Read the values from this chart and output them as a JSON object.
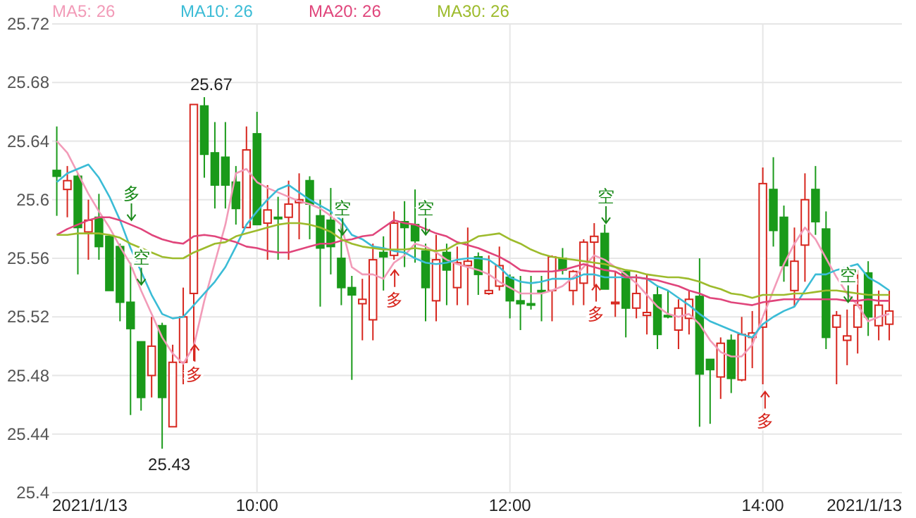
{
  "chart_data": {
    "type": "candlestick",
    "x": [
      8.4167,
      8.5,
      8.5833,
      8.6667,
      8.75,
      8.8333,
      8.9167,
      9,
      9.0833,
      9.1667,
      9.25,
      9.3333,
      9.4167,
      9.5,
      9.5833,
      9.6667,
      9.75,
      9.8333,
      9.9167,
      10,
      10.0833,
      10.1667,
      10.25,
      10.3333,
      10.4167,
      10.5,
      10.5833,
      10.6667,
      10.75,
      10.8333,
      10.9167,
      11,
      11.0833,
      11.1667,
      11.25,
      11.3333,
      11.4167,
      11.5,
      11.5833,
      11.6667,
      11.75,
      11.8333,
      11.9167,
      12,
      12.0833,
      12.1667,
      12.25,
      12.3333,
      12.4167,
      12.5,
      12.5833,
      12.6667,
      12.75,
      12.8333,
      12.9167,
      13,
      13.0833,
      13.1667,
      13.25,
      13.3333,
      13.4167,
      13.5,
      13.5833,
      13.6667,
      13.75,
      13.8333,
      13.9167,
      14,
      14.0833,
      14.1667,
      14.25,
      14.3333,
      14.4167,
      14.5,
      14.5833,
      14.6667,
      14.75,
      14.8333,
      14.9167,
      15
    ],
    "ohlc": [
      [
        25.62,
        25.65,
        25.589,
        25.616
      ],
      [
        25.607,
        25.623,
        25.588,
        25.613
      ],
      [
        25.616,
        25.618,
        25.549,
        25.581
      ],
      [
        25.578,
        25.6,
        25.559,
        25.586
      ],
      [
        25.588,
        25.604,
        25.559,
        25.568
      ],
      [
        25.575,
        25.576,
        25.538,
        25.538
      ],
      [
        25.568,
        25.57,
        25.517,
        25.53
      ],
      [
        25.53,
        25.557,
        25.453,
        25.512
      ],
      [
        25.503,
        25.503,
        25.456,
        25.465
      ],
      [
        25.48,
        25.52,
        25.465,
        25.5
      ],
      [
        25.514,
        25.516,
        25.43,
        25.465
      ],
      [
        25.445,
        25.501,
        25.445,
        25.489
      ],
      [
        25.489,
        25.54,
        25.474,
        25.52
      ],
      [
        25.536,
        25.665,
        25.49,
        25.665
      ],
      [
        25.664,
        25.67,
        25.615,
        25.631
      ],
      [
        25.632,
        25.653,
        25.594,
        25.61
      ],
      [
        25.629,
        25.653,
        25.594,
        25.61
      ],
      [
        25.612,
        25.623,
        25.583,
        25.594
      ],
      [
        25.581,
        25.65,
        25.581,
        25.634
      ],
      [
        25.645,
        25.66,
        25.583,
        25.583
      ],
      [
        25.584,
        25.61,
        25.559,
        25.593
      ],
      [
        25.588,
        25.602,
        25.559,
        25.587
      ],
      [
        25.588,
        25.613,
        25.559,
        25.597
      ],
      [
        25.598,
        25.618,
        25.573,
        25.6
      ],
      [
        25.613,
        25.616,
        25.573,
        25.597
      ],
      [
        25.589,
        25.6,
        25.527,
        25.567
      ],
      [
        25.586,
        25.608,
        25.549,
        25.568
      ],
      [
        25.56,
        25.583,
        25.528,
        25.54
      ],
      [
        25.54,
        25.548,
        25.477,
        25.535
      ],
      [
        25.529,
        25.546,
        25.504,
        25.532
      ],
      [
        25.518,
        25.57,
        25.504,
        25.559
      ],
      [
        25.564,
        25.575,
        25.538,
        25.561
      ],
      [
        25.562,
        25.592,
        25.559,
        25.584
      ],
      [
        25.585,
        25.599,
        25.554,
        25.581
      ],
      [
        25.583,
        25.607,
        25.557,
        25.572
      ],
      [
        25.565,
        25.57,
        25.517,
        25.54
      ],
      [
        25.531,
        25.576,
        25.517,
        25.559
      ],
      [
        25.564,
        25.57,
        25.528,
        25.552
      ],
      [
        25.54,
        25.568,
        25.528,
        25.557
      ],
      [
        25.555,
        25.581,
        25.528,
        25.558
      ],
      [
        25.561,
        25.564,
        25.535,
        25.549
      ],
      [
        25.536,
        25.562,
        25.535,
        25.538
      ],
      [
        25.541,
        25.568,
        25.538,
        25.555
      ],
      [
        25.547,
        25.549,
        25.519,
        25.531
      ],
      [
        25.531,
        25.548,
        25.511,
        25.529
      ],
      [
        25.529,
        25.548,
        25.525,
        25.528
      ],
      [
        25.538,
        25.548,
        25.517,
        25.537
      ],
      [
        25.538,
        25.562,
        25.517,
        25.561
      ],
      [
        25.56,
        25.567,
        25.549,
        25.552
      ],
      [
        25.538,
        25.552,
        25.528,
        25.551
      ],
      [
        25.543,
        25.573,
        25.528,
        25.571
      ],
      [
        25.571,
        25.584,
        25.541,
        25.575
      ],
      [
        25.577,
        25.583,
        25.539,
        25.539
      ],
      [
        25.529,
        25.551,
        25.52,
        25.53
      ],
      [
        25.551,
        25.552,
        25.506,
        25.526
      ],
      [
        25.526,
        25.549,
        25.519,
        25.536
      ],
      [
        25.521,
        25.549,
        25.508,
        25.523
      ],
      [
        25.535,
        25.541,
        25.498,
        25.508
      ],
      [
        25.521,
        25.538,
        25.519,
        25.52
      ],
      [
        25.511,
        25.532,
        25.498,
        25.526
      ],
      [
        25.519,
        25.538,
        25.508,
        25.532
      ],
      [
        25.534,
        25.56,
        25.445,
        25.481
      ],
      [
        25.491,
        25.491,
        25.447,
        25.484
      ],
      [
        25.479,
        25.506,
        25.464,
        25.502
      ],
      [
        25.504,
        25.508,
        25.468,
        25.478
      ],
      [
        25.477,
        25.52,
        25.476,
        25.508
      ],
      [
        25.506,
        25.524,
        25.485,
        25.509
      ],
      [
        25.513,
        25.622,
        25.474,
        25.611
      ],
      [
        25.607,
        25.629,
        25.568,
        25.579
      ],
      [
        25.588,
        25.596,
        25.544,
        25.555
      ],
      [
        25.538,
        25.581,
        25.527,
        25.558
      ],
      [
        25.569,
        25.618,
        25.544,
        25.6
      ],
      [
        25.607,
        25.623,
        25.576,
        25.585
      ],
      [
        25.58,
        25.592,
        25.498,
        25.506
      ],
      [
        25.513,
        25.524,
        25.474,
        25.521
      ],
      [
        25.504,
        25.525,
        25.487,
        25.507
      ],
      [
        25.513,
        25.552,
        25.495,
        25.528
      ],
      [
        25.55,
        25.558,
        25.507,
        25.52
      ],
      [
        25.514,
        25.538,
        25.504,
        25.528
      ],
      [
        25.515,
        25.538,
        25.504,
        25.524
      ]
    ],
    "colors": [
      "#1a9a1a",
      "#d7261e",
      "#1a9a1a",
      "#d7261e",
      "#1a9a1a",
      "#1a9a1a",
      "#1a9a1a",
      "#1a9a1a",
      "#1a9a1a",
      "#d7261e",
      "#1a9a1a",
      "#d7261e",
      "#d7261e",
      "#d7261e",
      "#1a9a1a",
      "#1a9a1a",
      "#1a9a1a",
      "#1a9a1a",
      "#d7261e",
      "#1a9a1a",
      "#d7261e",
      "#1a9a1a",
      "#d7261e",
      "#d7261e",
      "#1a9a1a",
      "#1a9a1a",
      "#1a9a1a",
      "#1a9a1a",
      "#1a9a1a",
      "#d7261e",
      "#d7261e",
      "#1a9a1a",
      "#d7261e",
      "#1a9a1a",
      "#1a9a1a",
      "#1a9a1a",
      "#d7261e",
      "#1a9a1a",
      "#d7261e",
      "#d7261e",
      "#1a9a1a",
      "#d7261e",
      "#d7261e",
      "#1a9a1a",
      "#1a9a1a",
      "#1a9a1a",
      "#1a9a1a",
      "#d7261e",
      "#1a9a1a",
      "#d7261e",
      "#d7261e",
      "#d7261e",
      "#1a9a1a",
      "#d7261e",
      "#1a9a1a",
      "#d7261e",
      "#d7261e",
      "#1a9a1a",
      "#1a9a1a",
      "#d7261e",
      "#d7261e",
      "#1a9a1a",
      "#1a9a1a",
      "#d7261e",
      "#1a9a1a",
      "#d7261e",
      "#d7261e",
      "#d7261e",
      "#1a9a1a",
      "#1a9a1a",
      "#d7261e",
      "#d7261e",
      "#1a9a1a",
      "#1a9a1a",
      "#d7261e",
      "#d7261e",
      "#d7261e",
      "#1a9a1a",
      "#d7261e",
      "#d7261e"
    ],
    "series": [
      {
        "type": "line",
        "name": "MA5: 26",
        "color": "#f29bb8",
        "values": [
          25.64,
          25.632,
          25.618,
          25.604,
          25.592,
          25.581,
          25.568,
          25.556,
          25.538,
          25.522,
          25.506,
          25.495,
          25.488,
          25.5,
          25.531,
          25.557,
          25.583,
          25.618,
          25.621,
          25.612,
          25.608,
          25.605,
          25.602,
          25.599,
          25.597,
          25.594,
          25.589,
          25.583,
          25.554,
          25.549,
          25.549,
          25.546,
          25.557,
          25.562,
          25.57,
          25.568,
          25.564,
          25.559,
          25.556,
          25.554,
          25.552,
          25.549,
          25.544,
          25.54,
          25.536,
          25.536,
          25.536,
          25.538,
          25.541,
          25.547,
          25.554,
          25.562,
          25.559,
          25.554,
          25.549,
          25.543,
          25.535,
          25.527,
          25.522,
          25.52,
          25.522,
          25.515,
          25.504,
          25.496,
          25.493,
          25.493,
          25.501,
          25.52,
          25.538,
          25.556,
          25.57,
          25.581,
          25.573,
          25.56,
          25.547,
          25.536,
          25.528,
          25.517,
          25.52,
          25.522
        ]
      },
      {
        "type": "line",
        "name": "MA10: 26",
        "color": "#3bbcd6",
        "values": [
          25.612,
          25.618,
          25.621,
          25.624,
          25.615,
          25.602,
          25.586,
          25.567,
          25.551,
          25.535,
          25.522,
          25.519,
          25.52,
          25.528,
          25.536,
          25.544,
          25.554,
          25.568,
          25.583,
          25.592,
          25.6,
          25.607,
          25.61,
          25.605,
          25.6,
          25.596,
          25.592,
          25.586,
          25.576,
          25.573,
          25.568,
          25.567,
          25.565,
          25.564,
          25.56,
          25.557,
          25.556,
          25.557,
          25.559,
          25.56,
          25.56,
          25.559,
          25.554,
          25.547,
          25.544,
          25.543,
          25.544,
          25.546,
          25.546,
          25.546,
          25.549,
          25.549,
          25.547,
          25.547,
          25.547,
          25.547,
          25.546,
          25.541,
          25.538,
          25.533,
          25.528,
          25.522,
          25.517,
          25.514,
          25.511,
          25.508,
          25.506,
          25.515,
          25.52,
          25.524,
          25.527,
          25.538,
          25.549,
          25.549,
          25.552,
          25.554,
          25.556,
          25.547,
          25.543,
          25.538
        ]
      },
      {
        "type": "line",
        "name": "MA20: 26",
        "color": "#e0457b",
        "values": [
          25.576,
          25.58,
          25.583,
          25.586,
          25.588,
          25.588,
          25.586,
          25.583,
          25.58,
          25.576,
          25.573,
          25.571,
          25.57,
          25.575,
          25.576,
          25.575,
          25.573,
          25.571,
          25.568,
          25.567,
          25.565,
          25.564,
          25.564,
          25.566,
          25.568,
          25.57,
          25.57,
          25.572,
          25.573,
          25.575,
          25.576,
          25.581,
          25.586,
          25.584,
          25.583,
          25.58,
          25.577,
          25.575,
          25.571,
          25.569,
          25.567,
          25.564,
          25.561,
          25.557,
          25.552,
          25.551,
          25.551,
          25.551,
          25.552,
          25.554,
          25.556,
          25.554,
          25.552,
          25.551,
          25.547,
          25.547,
          25.546,
          25.545,
          25.543,
          25.541,
          25.538,
          25.536,
          25.533,
          25.532,
          25.53,
          25.529,
          25.528,
          25.53,
          25.531,
          25.532,
          25.532,
          25.532,
          25.532,
          25.532,
          25.532,
          25.531,
          25.531,
          25.532,
          25.531,
          25.531
        ]
      },
      {
        "type": "line",
        "name": "MA30: 26",
        "color": "#9dbb2c",
        "values": [
          25.576,
          25.576,
          25.577,
          25.577,
          25.577,
          25.576,
          25.574,
          25.57,
          25.567,
          25.564,
          25.561,
          25.56,
          25.56,
          25.564,
          25.567,
          25.57,
          25.571,
          25.575,
          25.577,
          25.579,
          25.581,
          25.583,
          25.584,
          25.584,
          25.583,
          25.581,
          25.578,
          25.573,
          25.57,
          25.568,
          25.567,
          25.566,
          25.566,
          25.566,
          25.567,
          25.566,
          25.565,
          25.566,
          25.57,
          25.571,
          25.575,
          25.576,
          25.577,
          25.573,
          25.57,
          25.566,
          25.563,
          25.561,
          25.56,
          25.559,
          25.558,
          25.557,
          25.556,
          25.554,
          25.552,
          25.551,
          25.549,
          25.548,
          25.547,
          25.547,
          25.546,
          25.544,
          25.541,
          25.539,
          25.536,
          25.535,
          25.533,
          25.535,
          25.535,
          25.535,
          25.536,
          25.536,
          25.537,
          25.538,
          25.538,
          25.537,
          25.536,
          25.535,
          25.535,
          25.535
        ]
      }
    ],
    "xlim": [
      8.38,
      15.1
    ],
    "xticks": [
      {
        "value": 8.38,
        "label": "2021/1/13"
      },
      {
        "value": 10,
        "label": "10:00"
      },
      {
        "value": 12,
        "label": "12:00"
      },
      {
        "value": 14,
        "label": "14:00"
      },
      {
        "value": 15.1,
        "label": "2021/1/13"
      }
    ],
    "ylim": [
      25.4,
      25.72
    ],
    "yticks": [
      25.4,
      25.44,
      25.48,
      25.52,
      25.56,
      25.6,
      25.64,
      25.68,
      25.72
    ],
    "grid": true,
    "legend": "top left",
    "annotations": [
      {
        "text": "25.67",
        "x": 9.5833,
        "y": 25.67
      },
      {
        "text": "25.43",
        "x": 9.25,
        "y": 25.43
      },
      {
        "text": "多",
        "x": 9.007,
        "y": 25.586
      },
      {
        "text": "空",
        "x": 9.085,
        "y": 25.542
      },
      {
        "text": "多",
        "x": 9.508,
        "y": 25.501
      },
      {
        "text": "空",
        "x": 10.677,
        "y": 25.576
      },
      {
        "text": "多",
        "x": 11.089,
        "y": 25.552
      },
      {
        "text": "空",
        "x": 11.334,
        "y": 25.576
      },
      {
        "text": "多",
        "x": 12.682,
        "y": 25.542
      },
      {
        "text": "空",
        "x": 12.76,
        "y": 25.584
      },
      {
        "text": "多",
        "x": 14.018,
        "y": 25.469
      },
      {
        "text": "空",
        "x": 14.675,
        "y": 25.53
      }
    ]
  }
}
